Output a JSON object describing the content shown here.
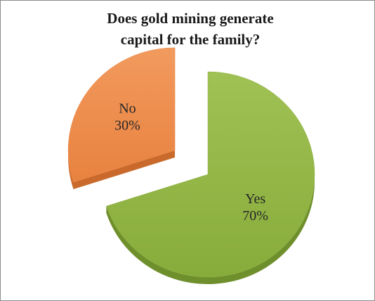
{
  "chart_data": {
    "type": "pie",
    "title_lines": [
      "Does gold mining generate",
      "capital for the family?"
    ],
    "slices": [
      {
        "label": "Yes",
        "value": 70,
        "value_label": "70%",
        "color": "#8fb243"
      },
      {
        "label": "No",
        "value": 30,
        "value_label": "30%",
        "color": "#ec8b4b"
      }
    ]
  }
}
